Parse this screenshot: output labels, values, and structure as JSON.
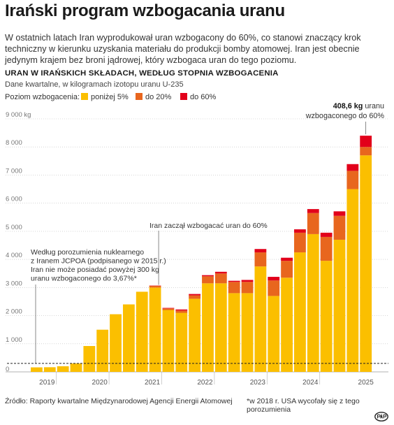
{
  "header": {
    "title": "Irański program wzbogacania uranu",
    "lead": "W ostatnich latach Iran wyprodukował uran wzbogacony do 60%, co stanowi znaczący krok techniczny w kierunku uzyskania materiału do produkcji bomby atomowej. Iran jest obecnie jedynym krajem bez broni jądrowej, który wzbogaca uran do tego poziomu.",
    "subtitle": "URAN W IRAŃSKICH SKŁADACH, WEDŁUG STOPNIA WZBOGACENIA",
    "data_note": "Dane kwartalne, w kilogramach izotopu uranu U-235"
  },
  "footer": {
    "source": "Źródło: Raporty kwartalne Międzynarodowej Agencji Energii Atomowej",
    "footnote": "*w 2018 r. USA wycofały się z tego porozumienia"
  },
  "chart_data": {
    "type": "bar",
    "stacked": true,
    "legend_title": "Poziom wzbogacenia:",
    "y_unit": "kg",
    "ylim": [
      0,
      9000
    ],
    "y_ticks": [
      1000,
      2000,
      3000,
      4000,
      5000,
      6000,
      7000,
      8000,
      9000
    ],
    "y_tick_labels": [
      "1 000",
      "2 000",
      "3 000",
      "4 000",
      "5 000",
      "6 000",
      "7 000",
      "8 000",
      "9 000 kg"
    ],
    "x_tick_labels": [
      "2019",
      "2020",
      "2021",
      "2022",
      "2023",
      "2024",
      "2025"
    ],
    "reference_line": {
      "value": 300
    },
    "series": [
      {
        "name": "poniżej 5%",
        "color": "#fbbf00",
        "values": [
          160,
          165,
          200,
          300,
          920,
          1500,
          2050,
          2400,
          2850,
          3000,
          2200,
          2100,
          2600,
          3150,
          3150,
          2800,
          2800,
          3750,
          2700,
          3350,
          4250,
          4900,
          3950,
          4700,
          6500,
          7700
        ]
      },
      {
        "name": "do 20%",
        "color": "#e8661e",
        "values": [
          0,
          0,
          0,
          0,
          0,
          0,
          0,
          0,
          0,
          60,
          55,
          80,
          120,
          250,
          350,
          400,
          400,
          500,
          550,
          600,
          700,
          750,
          850,
          850,
          650,
          300
        ]
      },
      {
        "name": "do 60%",
        "color": "#e2001a",
        "values": [
          0,
          0,
          0,
          0,
          0,
          0,
          0,
          0,
          0,
          10,
          20,
          40,
          50,
          40,
          60,
          40,
          70,
          120,
          130,
          110,
          120,
          140,
          150,
          160,
          240,
          400
        ]
      }
    ],
    "annotations": [
      {
        "lines": [
          "Według porozumienia nuklearnego",
          "z Iranem JCPOA (podpisanego w 2015 r.)",
          "Iran nie może posiadać powyżej 300 kg",
          "uranu wzbogaconego do 3,67%*"
        ]
      },
      {
        "lines": [
          "Iran zaczął wzbogacać uran do 60%"
        ]
      },
      {
        "bold": "408,6 kg",
        "lines": [
          " uranu",
          "wzbogaconego do 60%"
        ]
      }
    ]
  }
}
